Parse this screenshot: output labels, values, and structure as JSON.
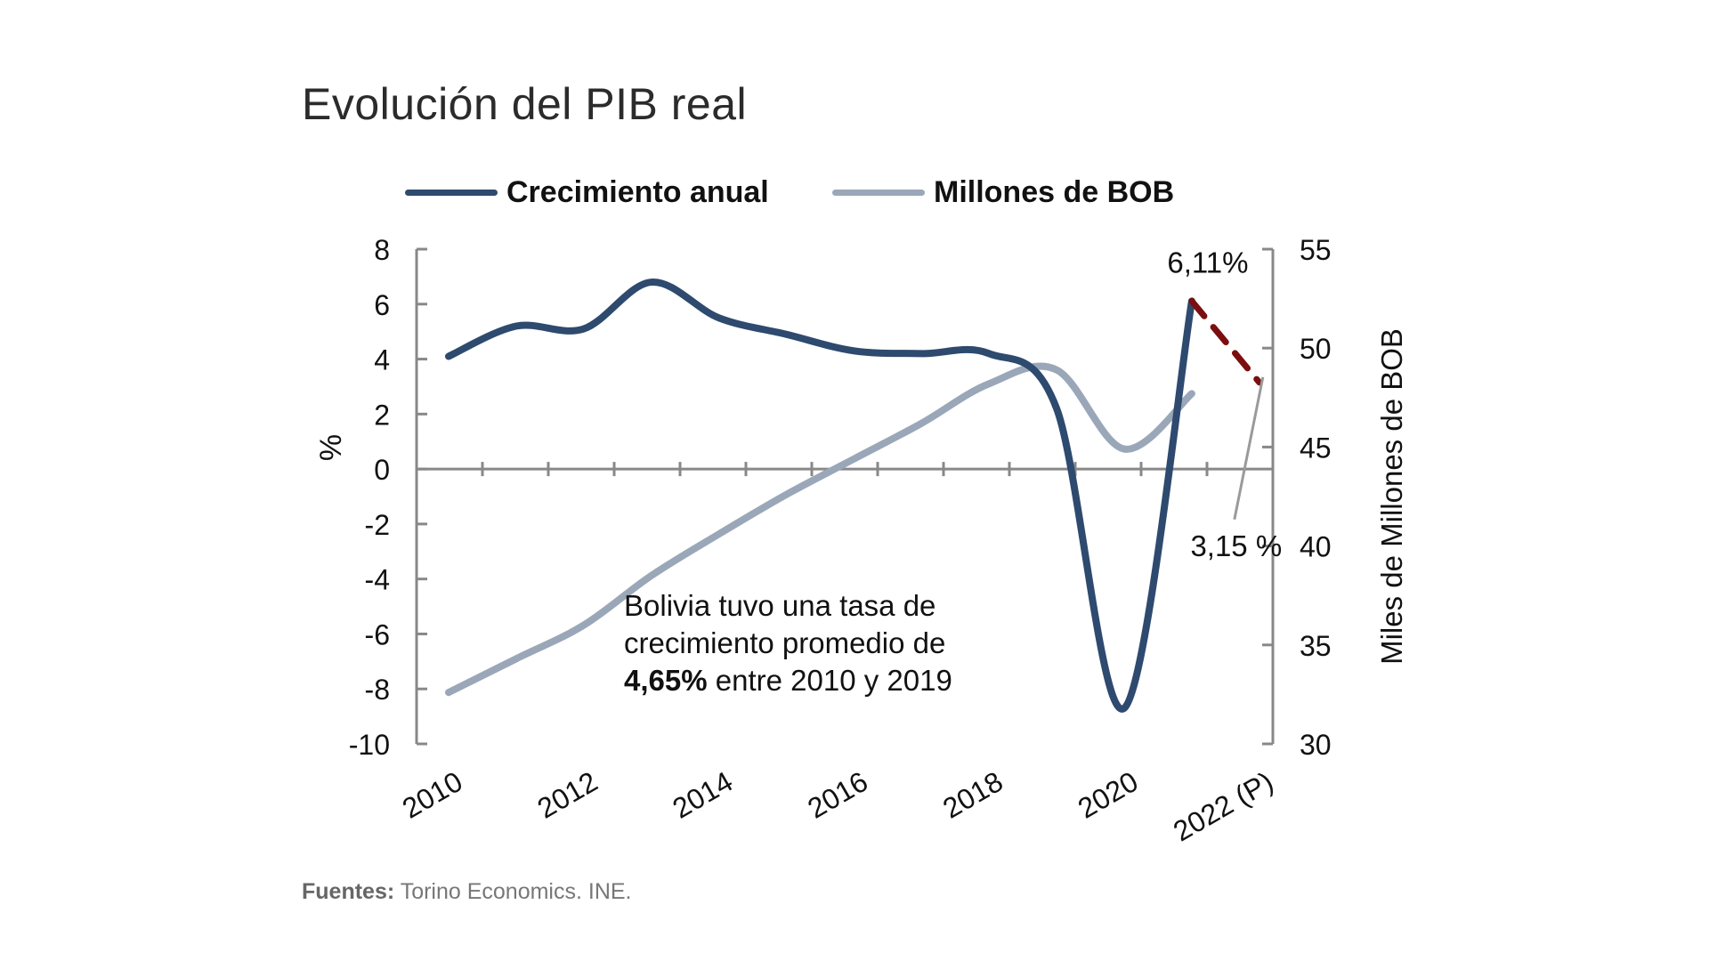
{
  "header": {
    "title": "Evolución del PIB real"
  },
  "legend": [
    {
      "label": "Crecimiento anual",
      "color": "#2E4A6E"
    },
    {
      "label": "Millones de BOB",
      "color": "#9AA7B8"
    }
  ],
  "annotation": {
    "text_a": "Bolivia tuvo una tasa de crecimiento promedio de",
    "bold": "4,65%",
    "text_b": "entre 2010 y 2019"
  },
  "source": {
    "label": "Fuentes:",
    "text": "Torino Economics. INE."
  },
  "chart_data": {
    "type": "line",
    "title": "Evolución del PIB real",
    "x_ticks": [
      "2010",
      "2012",
      "2014",
      "2016",
      "2018",
      "2020",
      "2022 (P)"
    ],
    "x_range": [
      2010,
      2022.2
    ],
    "y_left": {
      "label": "%",
      "range": [
        -10,
        8
      ],
      "ticks": [
        "8",
        "6",
        "4",
        "2",
        "0",
        "-2",
        "-4",
        "-6",
        "-8",
        "-10"
      ]
    },
    "y_right": {
      "label": "Miles de Millones de BOB",
      "range": [
        30,
        55
      ],
      "ticks": [
        "55",
        "50",
        "45",
        "40",
        "35",
        "30"
      ]
    },
    "series": [
      {
        "name": "Crecimiento anual",
        "axis": "left",
        "color": "#2E4A6E",
        "x": [
          2010,
          2011,
          2012,
          2013,
          2014,
          2015,
          2016,
          2017,
          2018,
          2019,
          2020,
          2021
        ],
        "y": [
          4.1,
          5.2,
          5.1,
          6.8,
          5.5,
          4.9,
          4.3,
          4.2,
          4.2,
          2.2,
          -8.7,
          6.11
        ]
      },
      {
        "name": "Crecimiento anual (proyección)",
        "axis": "left",
        "color": "#7B0E10",
        "style": "dashed",
        "x": [
          2021,
          2022
        ],
        "y": [
          6.11,
          3.15
        ]
      },
      {
        "name": "Millones de BOB",
        "axis": "right",
        "color": "#9AA7B8",
        "x": [
          2010,
          2011,
          2012,
          2013,
          2014,
          2015,
          2016,
          2017,
          2018,
          2019,
          2020,
          2021
        ],
        "y": [
          32.6,
          34.3,
          36.0,
          38.5,
          40.6,
          42.6,
          44.4,
          46.2,
          48.2,
          48.9,
          44.9,
          47.7
        ]
      }
    ],
    "data_labels": [
      {
        "text": "6,11%",
        "x": 2021,
        "y": 6.11,
        "axis": "left"
      },
      {
        "text": "3,15 %",
        "x": 2022,
        "y": 3.15,
        "axis": "left"
      }
    ],
    "grid": false,
    "legend_position": "top"
  }
}
